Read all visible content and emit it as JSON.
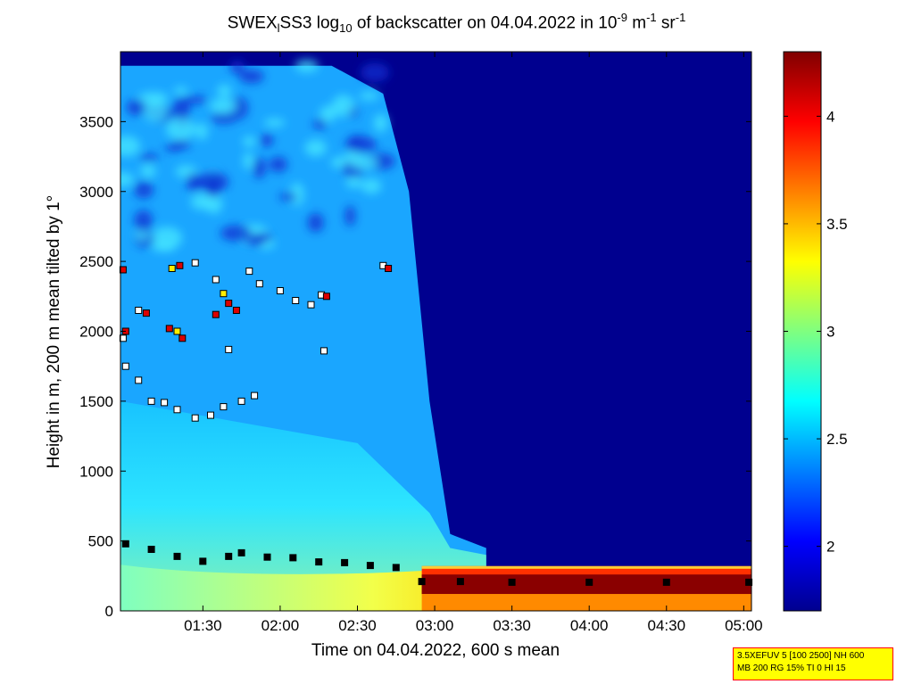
{
  "chart_data": {
    "type": "heatmap",
    "title": {
      "part1": "SWEX",
      "sub1": "l",
      "part2": "SS3 log",
      "sub2": "10",
      "part3": " of backscatter on 04.04.2022 in 10",
      "sup1": "-9",
      "part4": " m",
      "sup2": "-1",
      "part5": " sr",
      "sup3": "-1"
    },
    "xlabel": "Time on 04.04.2022, 600 s mean",
    "ylabel": "Height in m, 200 m mean tilted by 1°",
    "xlim": [
      "00:58",
      "05:03"
    ],
    "ylim": [
      0,
      4000
    ],
    "x_ticks": [
      "01:30",
      "02:00",
      "02:30",
      "03:00",
      "03:30",
      "04:00",
      "04:30",
      "05:00"
    ],
    "y_ticks": [
      0,
      500,
      1000,
      1500,
      2000,
      2500,
      3000,
      3500
    ],
    "colorbar": {
      "range": [
        1.7,
        4.3
      ],
      "ticks": [
        "2",
        "2.5",
        "3",
        "3.5",
        "4"
      ],
      "tick_values": [
        2,
        2.5,
        3,
        3.5,
        4
      ],
      "colormap": "jet"
    },
    "cloud_free_after": "02:55",
    "aerosol_top_m": [
      {
        "t": "00:58",
        "h": 3900
      },
      {
        "t": "02:20",
        "h": 3900
      },
      {
        "t": "02:40",
        "h": 3700
      },
      {
        "t": "02:50",
        "h": 3000
      },
      {
        "t": "02:58",
        "h": 1500
      },
      {
        "t": "03:06",
        "h": 550
      },
      {
        "t": "03:20",
        "h": 450
      }
    ],
    "series": [
      {
        "marker": "black-square",
        "points": [
          {
            "t": "01:00",
            "h": 480
          },
          {
            "t": "01:10",
            "h": 440
          },
          {
            "t": "01:20",
            "h": 390
          },
          {
            "t": "01:30",
            "h": 355
          },
          {
            "t": "01:40",
            "h": 390
          },
          {
            "t": "01:45",
            "h": 415
          },
          {
            "t": "01:55",
            "h": 385
          },
          {
            "t": "02:05",
            "h": 380
          },
          {
            "t": "02:15",
            "h": 350
          },
          {
            "t": "02:25",
            "h": 345
          },
          {
            "t": "02:35",
            "h": 325
          },
          {
            "t": "02:45",
            "h": 310
          },
          {
            "t": "02:55",
            "h": 210
          },
          {
            "t": "03:10",
            "h": 210
          },
          {
            "t": "03:30",
            "h": 205
          },
          {
            "t": "04:00",
            "h": 205
          },
          {
            "t": "04:30",
            "h": 205
          },
          {
            "t": "05:02",
            "h": 205
          }
        ]
      },
      {
        "marker": "white-square",
        "points": [
          {
            "t": "00:59",
            "h": 1950
          },
          {
            "t": "01:00",
            "h": 1750
          },
          {
            "t": "01:05",
            "h": 1650
          },
          {
            "t": "01:10",
            "h": 1500
          },
          {
            "t": "01:15",
            "h": 1490
          },
          {
            "t": "01:20",
            "h": 1440
          },
          {
            "t": "01:27",
            "h": 1380
          },
          {
            "t": "01:33",
            "h": 1400
          },
          {
            "t": "01:38",
            "h": 1460
          },
          {
            "t": "01:45",
            "h": 1500
          },
          {
            "t": "01:50",
            "h": 1540
          },
          {
            "t": "01:05",
            "h": 2150
          },
          {
            "t": "01:40",
            "h": 1870
          },
          {
            "t": "01:52",
            "h": 2340
          },
          {
            "t": "02:00",
            "h": 2290
          },
          {
            "t": "02:06",
            "h": 2220
          },
          {
            "t": "02:12",
            "h": 2190
          },
          {
            "t": "02:16",
            "h": 2260
          },
          {
            "t": "02:17",
            "h": 1860
          },
          {
            "t": "01:48",
            "h": 2430
          },
          {
            "t": "02:40",
            "h": 2470
          },
          {
            "t": "01:35",
            "h": 2370
          },
          {
            "t": "01:27",
            "h": 2490
          }
        ]
      },
      {
        "marker": "red-square",
        "points": [
          {
            "t": "00:59",
            "h": 2440
          },
          {
            "t": "01:00",
            "h": 2000
          },
          {
            "t": "01:08",
            "h": 2130
          },
          {
            "t": "01:17",
            "h": 2020
          },
          {
            "t": "01:22",
            "h": 1950
          },
          {
            "t": "01:35",
            "h": 2120
          },
          {
            "t": "01:40",
            "h": 2200
          },
          {
            "t": "01:43",
            "h": 2150
          },
          {
            "t": "01:21",
            "h": 2470
          },
          {
            "t": "02:18",
            "h": 2250
          },
          {
            "t": "02:42",
            "h": 2450
          }
        ]
      },
      {
        "marker": "yellow-square",
        "points": [
          {
            "t": "01:18",
            "h": 2450
          },
          {
            "t": "01:38",
            "h": 2270
          },
          {
            "t": "01:20",
            "h": 2000
          }
        ]
      }
    ]
  },
  "info_box": {
    "line1": "3.5XEFUV 5 [100 2500] NH 600",
    "line2": "MB 200 RG 15% TI 0 HI 15"
  }
}
